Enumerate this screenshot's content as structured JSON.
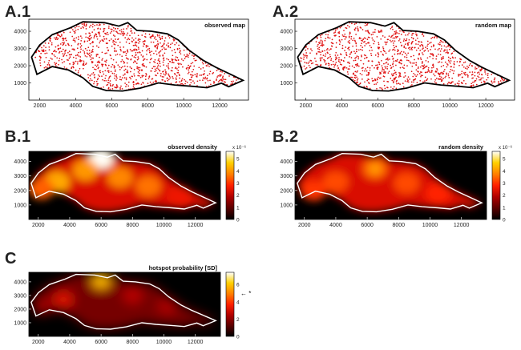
{
  "panels": [
    {
      "label": "A.1",
      "title": "observed map"
    },
    {
      "label": "A.2",
      "title": "random map"
    },
    {
      "label": "B.1",
      "title": "observed density"
    },
    {
      "label": "B.2",
      "title": "random density"
    },
    {
      "label": "C",
      "title": "hotspot probability [SD]"
    }
  ],
  "colors": {
    "dot": "#e01010",
    "outline_map": "#000000",
    "outline_heat": "#ffffff",
    "heat_scale": [
      "#000000",
      "#5a0000",
      "#b00000",
      "#ff2000",
      "#ff8000",
      "#ffd000",
      "#ffffff"
    ]
  },
  "chart_data": [
    {
      "type": "scatter",
      "title": "observed map",
      "x_ticks": [
        "2000",
        "4000",
        "6000",
        "8000",
        "10000",
        "12000"
      ],
      "y_ticks": [
        "1000",
        "2000",
        "3000",
        "4000"
      ],
      "xlim": [
        1400,
        13600
      ],
      "ylim": [
        0,
        4700
      ]
    },
    {
      "type": "scatter",
      "title": "random map",
      "x_ticks": [
        "2000",
        "4000",
        "6000",
        "8000",
        "10000",
        "12000"
      ],
      "y_ticks": [
        "1000",
        "2000",
        "3000",
        "4000"
      ],
      "xlim": [
        1400,
        13600
      ],
      "ylim": [
        0,
        4700
      ]
    },
    {
      "type": "heatmap",
      "title": "observed density",
      "x_ticks": [
        "2000",
        "4000",
        "6000",
        "8000",
        "10000",
        "12000"
      ],
      "y_ticks": [
        "1000",
        "2000",
        "3000",
        "4000"
      ],
      "colorbar_ticks": [
        "0",
        "1",
        "2",
        "3",
        "4",
        "5"
      ],
      "colorbar_exponent": "x 10⁻⁶",
      "colorbar_max": 5.6,
      "hotspots": [
        {
          "x": 6000,
          "y": 4200,
          "level": 5.5
        },
        {
          "x": 3200,
          "y": 2600,
          "level": 4.2
        },
        {
          "x": 5000,
          "y": 3400,
          "level": 4.0
        },
        {
          "x": 7200,
          "y": 2900,
          "level": 3.8
        },
        {
          "x": 9000,
          "y": 2300,
          "level": 3.6
        },
        {
          "x": 2200,
          "y": 2100,
          "level": 3.4
        },
        {
          "x": 11000,
          "y": 1600,
          "level": 2.6
        }
      ]
    },
    {
      "type": "heatmap",
      "title": "random density",
      "x_ticks": [
        "2000",
        "4000",
        "6000",
        "8000",
        "10000",
        "12000"
      ],
      "y_ticks": [
        "1000",
        "2000",
        "3000",
        "4000"
      ],
      "colorbar_ticks": [
        "0",
        "1",
        "2",
        "3",
        "4",
        "5"
      ],
      "colorbar_exponent": "x 10⁻⁶",
      "colorbar_max": 5.6,
      "hotspots": [
        {
          "x": 6500,
          "y": 3500,
          "level": 3.4
        },
        {
          "x": 4000,
          "y": 2600,
          "level": 3.2
        },
        {
          "x": 8500,
          "y": 2500,
          "level": 3.2
        },
        {
          "x": 2600,
          "y": 2000,
          "level": 3.0
        },
        {
          "x": 10500,
          "y": 1800,
          "level": 2.8
        }
      ]
    },
    {
      "type": "heatmap",
      "title": "hotspot probability [SD]",
      "x_ticks": [
        "2000",
        "4000",
        "6000",
        "8000",
        "10000",
        "12000"
      ],
      "y_ticks": [
        "1000",
        "2000",
        "3000",
        "4000"
      ],
      "colorbar_ticks": [
        "0",
        "2",
        "4",
        "6"
      ],
      "colorbar_max": 7.4,
      "marker": {
        "value": 5.0,
        "symbol": "← *"
      },
      "hotspots": [
        {
          "x": 6000,
          "y": 4100,
          "level": 5.2
        },
        {
          "x": 3600,
          "y": 2700,
          "level": 3.2
        },
        {
          "x": 8000,
          "y": 3000,
          "level": 2.6
        },
        {
          "x": 10200,
          "y": 2200,
          "level": 2.4
        },
        {
          "x": 2400,
          "y": 2200,
          "level": 2.2
        }
      ]
    }
  ]
}
